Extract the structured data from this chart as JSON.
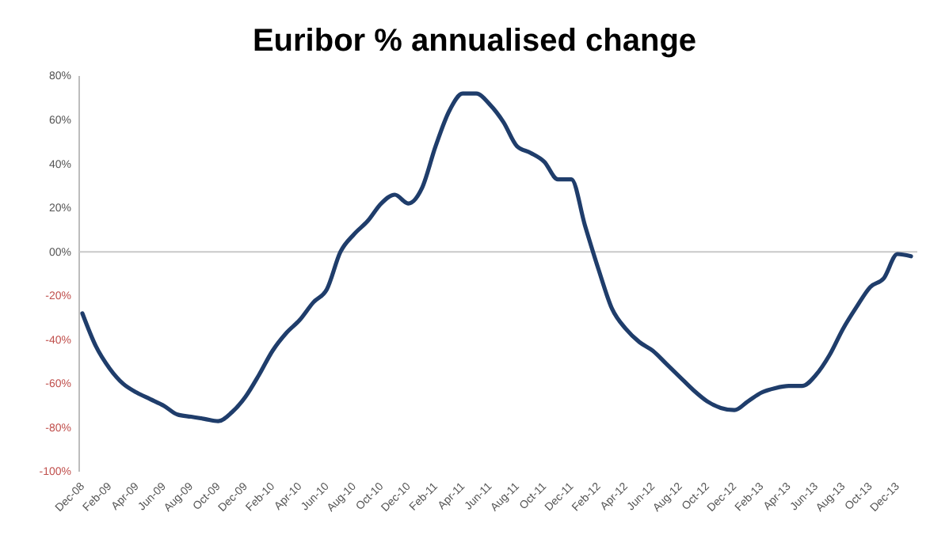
{
  "chart_data": {
    "type": "line",
    "title": "Euribor % annualised change",
    "categories": [
      "Dec-08",
      null,
      "Feb-09",
      null,
      "Apr-09",
      null,
      "Jun-09",
      null,
      "Aug-09",
      null,
      "Oct-09",
      null,
      "Dec-09",
      null,
      "Feb-10",
      null,
      "Apr-10",
      null,
      "Jun-10",
      null,
      "Aug-10",
      null,
      "Oct-10",
      null,
      "Dec-10",
      null,
      "Feb-11",
      null,
      "Apr-11",
      null,
      "Jun-11",
      null,
      "Aug-11",
      null,
      "Oct-11",
      null,
      "Dec-11",
      null,
      "Feb-12",
      null,
      "Apr-12",
      null,
      "Jun-12",
      null,
      "Aug-12",
      null,
      "Oct-12",
      null,
      "Dec-12",
      null,
      "Feb-13",
      null,
      "Apr-13",
      null,
      "Jun-13",
      null,
      "Aug-13",
      null,
      "Oct-13",
      null,
      "Dec-13",
      null
    ],
    "series": [
      {
        "color": "#1f3d6b",
        "values": [
          -28,
          -43,
          -53,
          -60,
          -64,
          -67,
          -70,
          -74,
          -75,
          -76,
          -77,
          -73,
          -66,
          -56,
          -45,
          -37,
          -31,
          -23,
          -17,
          0,
          8,
          14,
          22,
          26,
          22,
          29,
          48,
          64,
          72,
          72,
          67,
          59,
          48,
          45,
          41,
          33,
          33,
          12,
          -8,
          -26,
          -35,
          -41,
          -45,
          -51,
          -57,
          -63,
          -68,
          -71,
          -72,
          -68,
          -64,
          -62,
          -61,
          -61,
          -56,
          -47,
          -35,
          -25,
          -16,
          -12,
          -1,
          -2
        ]
      }
    ],
    "ylim": [
      -100,
      80
    ],
    "yticks": [
      {
        "value": 80,
        "label": "80%"
      },
      {
        "value": 60,
        "label": "60%"
      },
      {
        "value": 40,
        "label": "40%"
      },
      {
        "value": 20,
        "label": "20%"
      },
      {
        "value": 0,
        "label": "00%"
      },
      {
        "value": -20,
        "label": "-20%"
      },
      {
        "value": -40,
        "label": "-40%"
      },
      {
        "value": -60,
        "label": "-60%"
      },
      {
        "value": -80,
        "label": "-80%"
      },
      {
        "value": -100,
        "label": "-100%"
      }
    ],
    "marker": "none",
    "line_style": "solid"
  }
}
